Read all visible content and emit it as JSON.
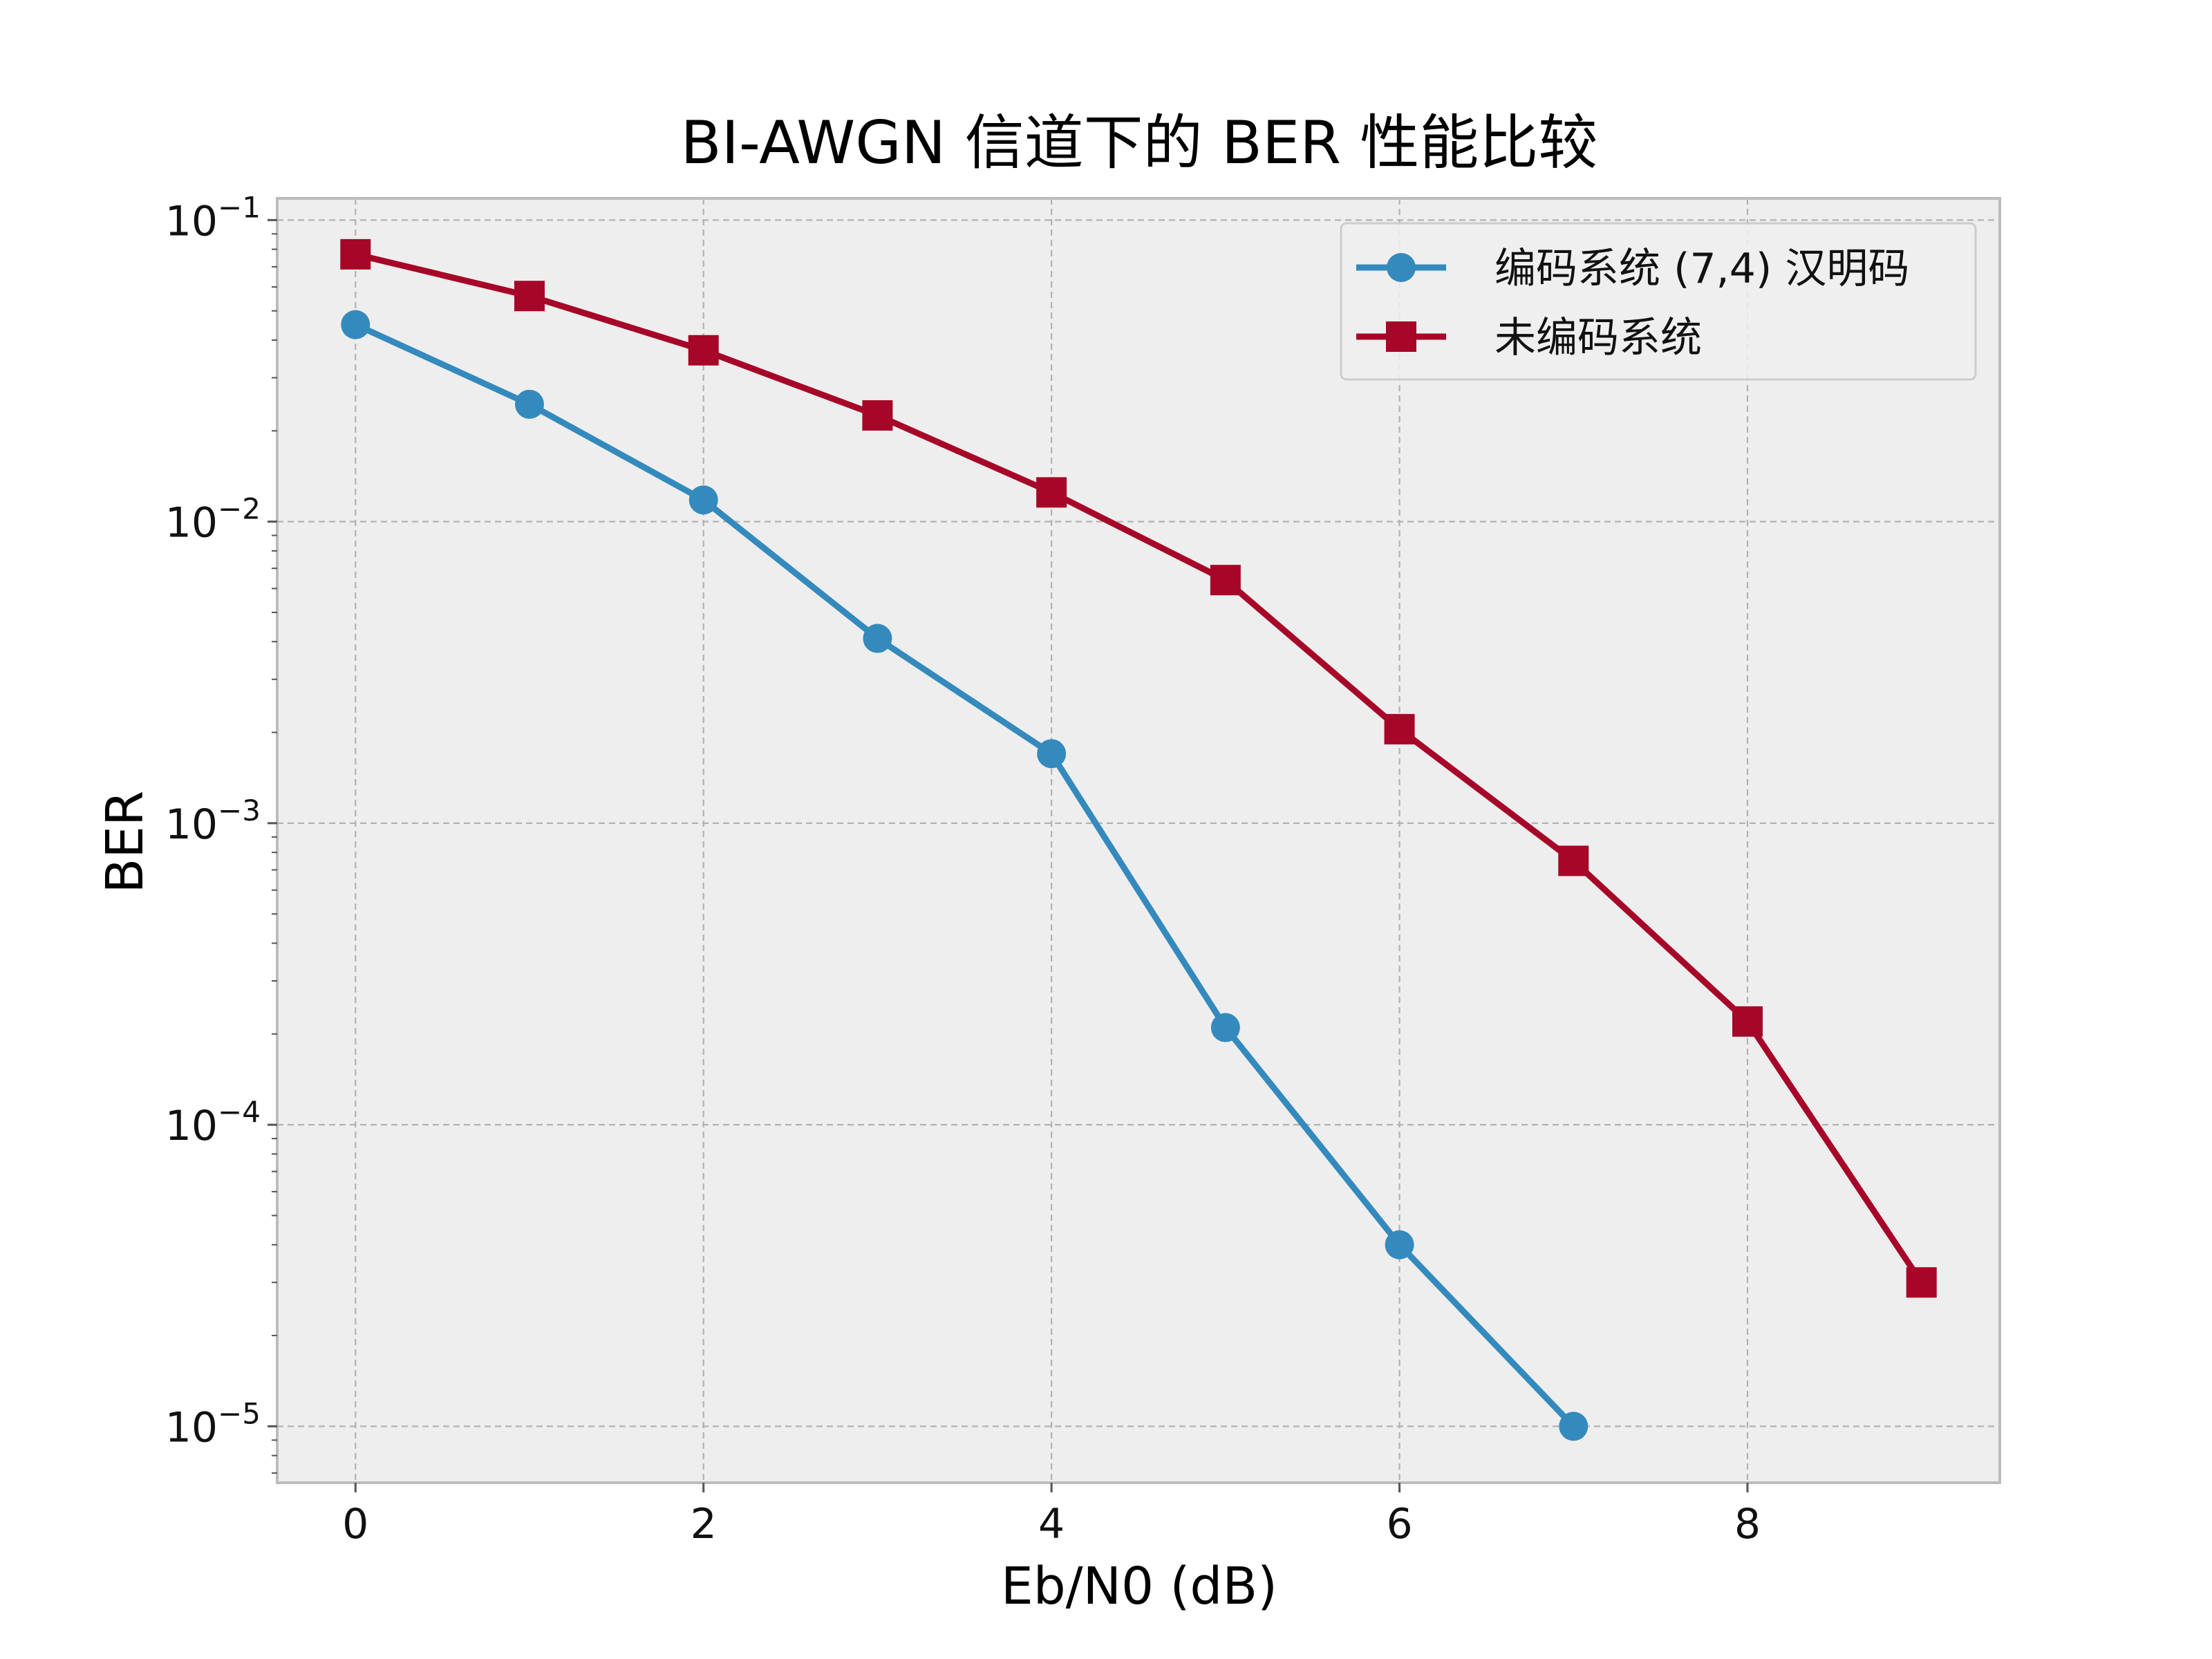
{
  "chart_data": {
    "type": "line",
    "title": "BI-AWGN 信道下的 BER 性能比较",
    "xlabel": "Eb/N0 (dB)",
    "ylabel": "BER",
    "yscale": "log",
    "xlim": [
      -0.45,
      9.45
    ],
    "ylim": [
      6.5e-06,
      0.118
    ],
    "x_ticks": [
      0,
      2,
      4,
      6,
      8
    ],
    "y_ticks": [
      {
        "value": 0.1,
        "base": "10",
        "exp": "−1"
      },
      {
        "value": 0.01,
        "base": "10",
        "exp": "−2"
      },
      {
        "value": 0.001,
        "base": "10",
        "exp": "−3"
      },
      {
        "value": 0.0001,
        "base": "10",
        "exp": "−4"
      },
      {
        "value": 1e-05,
        "base": "10",
        "exp": "−5"
      }
    ],
    "grid": true,
    "legend_position": "top-right",
    "series": [
      {
        "name": "编码系统 (7,4) 汉明码",
        "color": "#348ABD",
        "marker": "circle",
        "x": [
          0,
          1,
          2,
          3,
          4,
          5,
          6,
          7
        ],
        "y": [
          0.045,
          0.0245,
          0.0118,
          0.0041,
          0.0017,
          0.00021,
          4e-05,
          1e-05
        ]
      },
      {
        "name": "未编码系统",
        "color": "#A60628",
        "marker": "square",
        "x": [
          0,
          1,
          2,
          3,
          4,
          5,
          6,
          7,
          8,
          9
        ],
        "y": [
          0.077,
          0.056,
          0.037,
          0.0225,
          0.0125,
          0.0064,
          0.00205,
          0.00075,
          0.00022,
          3e-05
        ]
      }
    ]
  }
}
